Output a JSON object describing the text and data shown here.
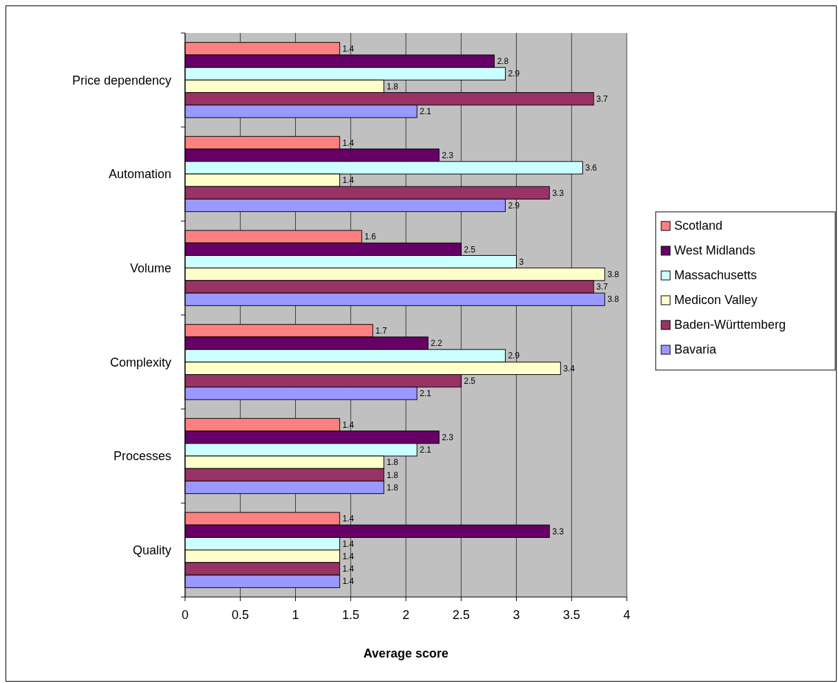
{
  "chart_data": {
    "type": "bar",
    "orientation": "horizontal",
    "xlabel": "Average score",
    "categories": [
      "Price dependency",
      "Automation",
      "Volume",
      "Complexity",
      "Processes",
      "Quality"
    ],
    "series": [
      {
        "name": "Scotland",
        "color": "#ff8080",
        "values": [
          1.4,
          1.4,
          1.6,
          1.7,
          1.4,
          1.4
        ]
      },
      {
        "name": "West Midlands",
        "color": "#660066",
        "values": [
          2.8,
          2.3,
          2.5,
          2.2,
          2.3,
          3.3
        ]
      },
      {
        "name": "Massachusetts",
        "color": "#ccffff",
        "values": [
          2.9,
          3.6,
          3,
          2.9,
          2.1,
          1.4
        ]
      },
      {
        "name": "Medicon Valley",
        "color": "#ffffcc",
        "values": [
          1.8,
          1.4,
          3.8,
          3.4,
          1.8,
          1.4
        ]
      },
      {
        "name": "Baden-Württemberg",
        "color": "#993366",
        "values": [
          3.7,
          3.3,
          3.7,
          2.5,
          1.8,
          1.4
        ]
      },
      {
        "name": "Bavaria",
        "color": "#9999ff",
        "values": [
          2.1,
          2.9,
          3.8,
          2.1,
          1.8,
          1.4
        ]
      }
    ],
    "xlim": [
      0,
      4
    ],
    "xticks": [
      0,
      0.5,
      1,
      1.5,
      2,
      2.5,
      3,
      3.5,
      4
    ],
    "grid": "x",
    "legend": "right",
    "data_labels": true
  }
}
